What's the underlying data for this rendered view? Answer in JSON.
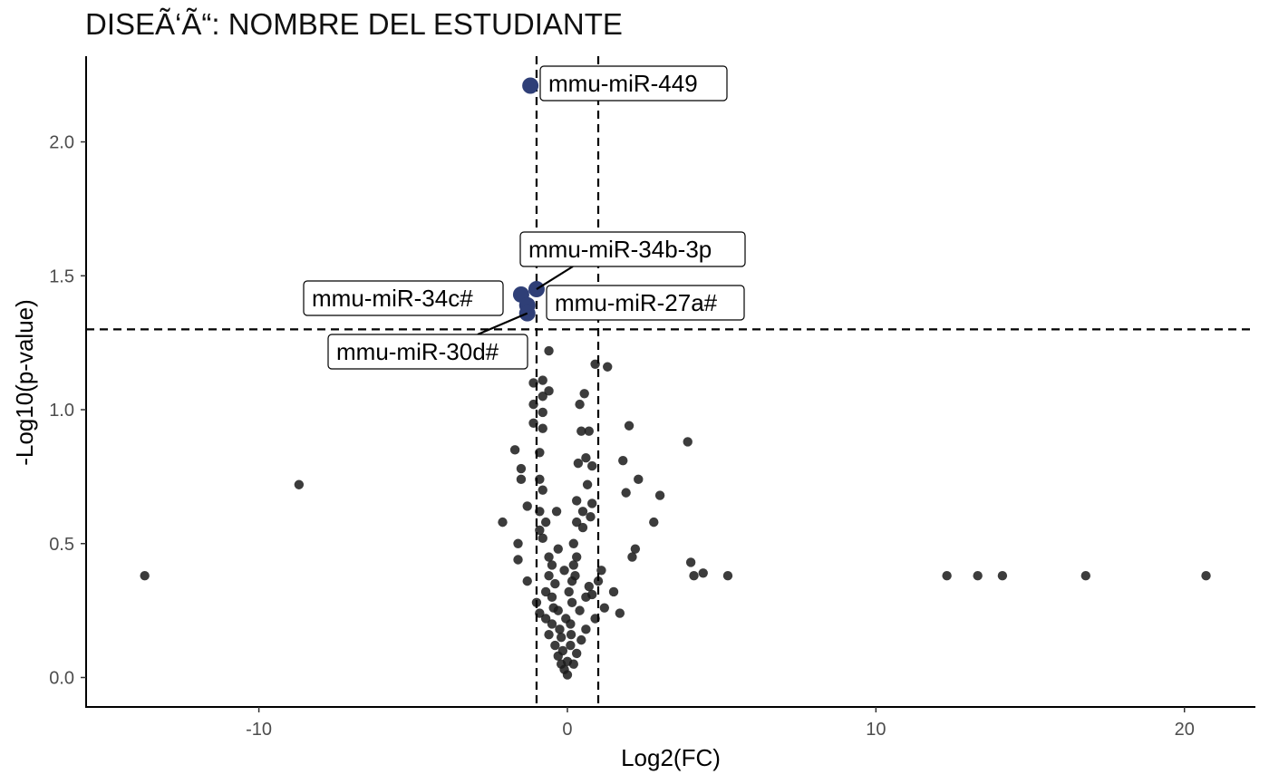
{
  "chart_data": {
    "type": "scatter",
    "title": "DISEÃ‘Ã“: NOMBRE DEL ESTUDIANTE",
    "xlabel": "Log2(FC)",
    "ylabel": "-Log10(p-value)",
    "xlim": [
      -15.6,
      22.3
    ],
    "ylim": [
      -0.11,
      2.32
    ],
    "x_ticks": [
      -10,
      0,
      10,
      20
    ],
    "x_tick_labels": [
      "-10",
      "0",
      "10",
      "20"
    ],
    "y_ticks": [
      0,
      0.5,
      1,
      1.5,
      2
    ],
    "y_tick_labels": [
      "0.0",
      "0.5",
      "1.0",
      "1.5",
      "2.0"
    ],
    "grid": false,
    "legend": "none",
    "thresholds": {
      "x": [
        -1,
        1
      ],
      "y": 1.3
    },
    "colors": {
      "points": "#1a1a1a",
      "highlight": "#2f3f77",
      "axis": "#000000"
    },
    "highlighted": [
      {
        "label": "mmu-miR-449",
        "x": -1.2,
        "y": 2.21
      },
      {
        "label": "mmu-miR-34b-3p",
        "x": -1.0,
        "y": 1.45
      },
      {
        "label": "mmu-miR-34c#",
        "x": -1.5,
        "y": 1.43
      },
      {
        "label": "mmu-miR-27a#",
        "x": -1.3,
        "y": 1.39
      },
      {
        "label": "mmu-miR-30d#",
        "x": -1.3,
        "y": 1.36
      }
    ],
    "points": [
      [
        -13.7,
        0.38
      ],
      [
        -8.7,
        0.72
      ],
      [
        -2.1,
        0.58
      ],
      [
        -1.7,
        0.85
      ],
      [
        -1.6,
        0.5
      ],
      [
        -1.6,
        0.44
      ],
      [
        -1.5,
        0.78
      ],
      [
        -1.5,
        0.74
      ],
      [
        -1.3,
        0.64
      ],
      [
        -1.3,
        0.36
      ],
      [
        -1.1,
        1.1
      ],
      [
        -1.1,
        1.02
      ],
      [
        -1.1,
        0.95
      ],
      [
        -1.0,
        0.28
      ],
      [
        -0.9,
        0.84
      ],
      [
        -0.9,
        0.74
      ],
      [
        -0.9,
        0.62
      ],
      [
        -0.9,
        0.55
      ],
      [
        -0.8,
        1.11
      ],
      [
        -0.8,
        1.05
      ],
      [
        -0.8,
        0.99
      ],
      [
        -0.8,
        0.93
      ],
      [
        -0.8,
        0.7
      ],
      [
        -0.8,
        0.52
      ],
      [
        -0.7,
        0.32
      ],
      [
        -0.7,
        0.58
      ],
      [
        -0.6,
        1.22
      ],
      [
        -0.6,
        1.07
      ],
      [
        -0.6,
        0.45
      ],
      [
        -0.6,
        0.38
      ],
      [
        -0.5,
        0.42
      ],
      [
        -0.5,
        0.3
      ],
      [
        -0.5,
        0.2
      ],
      [
        -0.4,
        0.35
      ],
      [
        -0.4,
        0.12
      ],
      [
        -0.35,
        0.62
      ],
      [
        -0.3,
        0.25
      ],
      [
        -0.3,
        0.08
      ],
      [
        -0.25,
        0.18
      ],
      [
        -0.2,
        0.05
      ],
      [
        -0.2,
        0.15
      ],
      [
        -0.15,
        0.1
      ],
      [
        -0.1,
        0.03
      ],
      [
        0.0,
        0.01
      ],
      [
        0.0,
        0.06
      ],
      [
        0.1,
        0.12
      ],
      [
        0.1,
        0.2
      ],
      [
        0.15,
        0.28
      ],
      [
        0.15,
        0.36
      ],
      [
        0.2,
        0.42
      ],
      [
        0.2,
        0.5
      ],
      [
        0.3,
        0.58
      ],
      [
        0.3,
        0.66
      ],
      [
        0.35,
        0.8
      ],
      [
        0.4,
        1.02
      ],
      [
        0.45,
        0.92
      ],
      [
        0.5,
        0.62
      ],
      [
        0.5,
        0.56
      ],
      [
        0.55,
        1.06
      ],
      [
        0.6,
        0.82
      ],
      [
        0.65,
        0.72
      ],
      [
        0.7,
        0.92
      ],
      [
        0.75,
        0.6
      ],
      [
        0.8,
        0.65
      ],
      [
        0.8,
        0.79
      ],
      [
        0.9,
        1.17
      ],
      [
        1.3,
        1.16
      ],
      [
        0.3,
        0.45
      ],
      [
        0.25,
        0.38
      ],
      [
        0.6,
        0.3
      ],
      [
        0.7,
        0.34
      ],
      [
        0.8,
        0.31
      ],
      [
        1.1,
        0.4
      ],
      [
        1.2,
        0.26
      ],
      [
        1.5,
        0.32
      ],
      [
        1.7,
        0.24
      ],
      [
        1.8,
        0.81
      ],
      [
        1.9,
        0.69
      ],
      [
        2.0,
        0.94
      ],
      [
        2.1,
        0.45
      ],
      [
        2.2,
        0.48
      ],
      [
        2.3,
        0.74
      ],
      [
        2.8,
        0.58
      ],
      [
        3.0,
        0.68
      ],
      [
        3.9,
        0.88
      ],
      [
        4.0,
        0.43
      ],
      [
        4.1,
        0.38
      ],
      [
        4.4,
        0.39
      ],
      [
        5.2,
        0.38
      ],
      [
        12.3,
        0.38
      ],
      [
        13.3,
        0.38
      ],
      [
        14.1,
        0.38
      ],
      [
        16.8,
        0.38
      ],
      [
        20.7,
        0.38
      ],
      [
        -0.05,
        0.22
      ],
      [
        0.05,
        0.32
      ],
      [
        -0.1,
        0.4
      ],
      [
        0.12,
        0.16
      ],
      [
        -0.3,
        0.48
      ],
      [
        0.4,
        0.25
      ],
      [
        0.45,
        0.14
      ],
      [
        -0.45,
        0.26
      ],
      [
        0.3,
        0.09
      ],
      [
        -0.6,
        0.16
      ],
      [
        0.6,
        0.18
      ],
      [
        -0.7,
        0.22
      ],
      [
        0.9,
        0.22
      ],
      [
        1.0,
        0.36
      ],
      [
        -0.9,
        0.24
      ],
      [
        0.2,
        0.05
      ]
    ]
  }
}
